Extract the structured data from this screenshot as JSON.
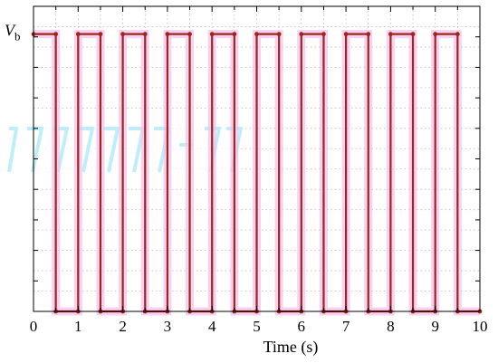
{
  "chart_data": {
    "type": "line",
    "title": "",
    "xlabel": "Time (s)",
    "ylabel": "",
    "xlim": [
      0,
      10
    ],
    "ylim": [
      0,
      1.1
    ],
    "x_ticks": [
      "0",
      "1",
      "2",
      "3",
      "4",
      "5",
      "6",
      "7",
      "8",
      "9",
      "10"
    ],
    "y_level_label": "V",
    "y_level_subscript": "b",
    "y_level_value": 1,
    "grid": true,
    "legend": "none",
    "series": [
      {
        "color": "#a0261c",
        "glow_color": "#f3c2ec",
        "x": [
          0,
          0.5,
          0.5,
          1,
          1,
          1.5,
          1.5,
          2,
          2,
          2.5,
          2.5,
          3,
          3,
          3.5,
          3.5,
          4,
          4,
          4.5,
          4.5,
          5,
          5,
          5.5,
          5.5,
          6,
          6,
          6.5,
          6.5,
          7,
          7,
          7.5,
          7.5,
          8,
          8,
          8.5,
          8.5,
          9,
          9,
          9.5,
          9.5,
          10
        ],
        "y": [
          1,
          1,
          0,
          0,
          1,
          1,
          0,
          0,
          1,
          1,
          0,
          0,
          1,
          1,
          0,
          0,
          1,
          1,
          0,
          0,
          1,
          1,
          0,
          0,
          1,
          1,
          0,
          0,
          1,
          1,
          0,
          0,
          1,
          1,
          0,
          0,
          1,
          1,
          0,
          0
        ]
      }
    ]
  }
}
